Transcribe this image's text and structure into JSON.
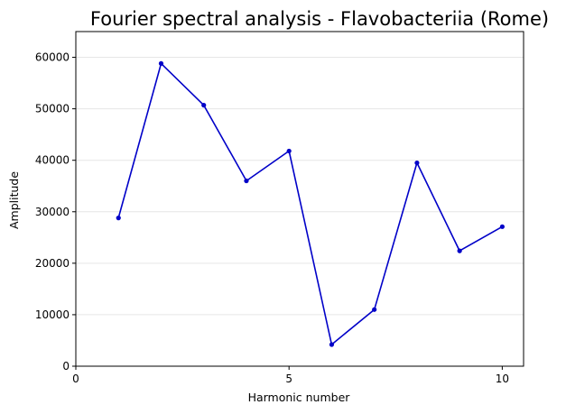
{
  "chart_data": {
    "type": "line",
    "title": "Fourier spectral analysis - Flavobacteriia (Rome)",
    "xlabel": "Harmonic number",
    "ylabel": "Amplitude",
    "xlim": [
      0,
      10.5
    ],
    "ylim": [
      0,
      65000
    ],
    "xticks": [
      0,
      5,
      10
    ],
    "yticks": [
      0,
      10000,
      20000,
      30000,
      40000,
      50000,
      60000
    ],
    "grid": "horizontal",
    "line_color": "#0000c8",
    "series": [
      {
        "x": [
          1,
          2,
          3,
          4,
          5,
          6,
          7,
          8,
          9,
          10
        ],
        "values": [
          28800,
          58800,
          50700,
          36000,
          41800,
          4200,
          11000,
          39500,
          22400,
          27100
        ]
      }
    ]
  }
}
